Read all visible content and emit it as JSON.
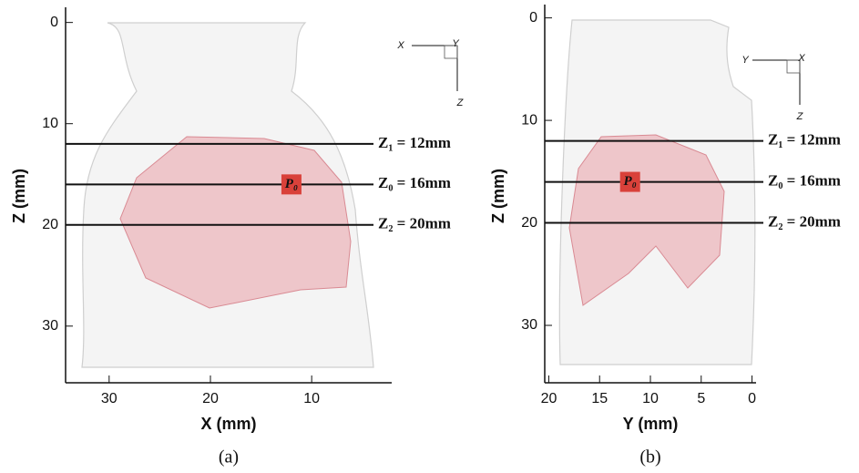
{
  "chart_data": [
    {
      "type": "scatter",
      "caption": "(a)",
      "xlabel": "X (mm)",
      "ylabel": "Z (mm)",
      "xlim": [
        34.3,
        2.1
      ],
      "ylim": [
        35.6,
        -1.5
      ],
      "xticks": [
        30,
        20,
        10
      ],
      "yticks": [
        0,
        10,
        20,
        30
      ],
      "reference_lines": [
        {
          "value": 12,
          "label": "Z₁ = 12mm"
        },
        {
          "value": 16,
          "label": "Z₀ = 16mm"
        },
        {
          "value": 20,
          "label": "Z₂ = 20mm"
        }
      ],
      "series": [
        {
          "name": "P₀",
          "color": "#d9413a",
          "x": [
            12
          ],
          "values": [
            16
          ]
        }
      ],
      "orientation_labels": [
        "X",
        "Y",
        "Z"
      ]
    },
    {
      "type": "scatter",
      "caption": "(b)",
      "xlabel": "Y (mm)",
      "ylabel": "Z (mm)",
      "xlim": [
        20.4,
        -0.4
      ],
      "ylim": [
        35.6,
        -1.3
      ],
      "xticks": [
        20,
        15,
        10,
        5,
        0
      ],
      "yticks": [
        0,
        10,
        20,
        30
      ],
      "reference_lines": [
        {
          "value": 12,
          "label": "Z₁ = 12mm"
        },
        {
          "value": 16,
          "label": "Z₀ = 16mm"
        },
        {
          "value": 20,
          "label": "Z₂ = 20mm"
        }
      ],
      "series": [
        {
          "name": "P₀",
          "color": "#d9413a",
          "x": [
            12
          ],
          "values": [
            16
          ]
        }
      ],
      "orientation_labels": [
        "Y",
        "X",
        "Z"
      ]
    }
  ]
}
